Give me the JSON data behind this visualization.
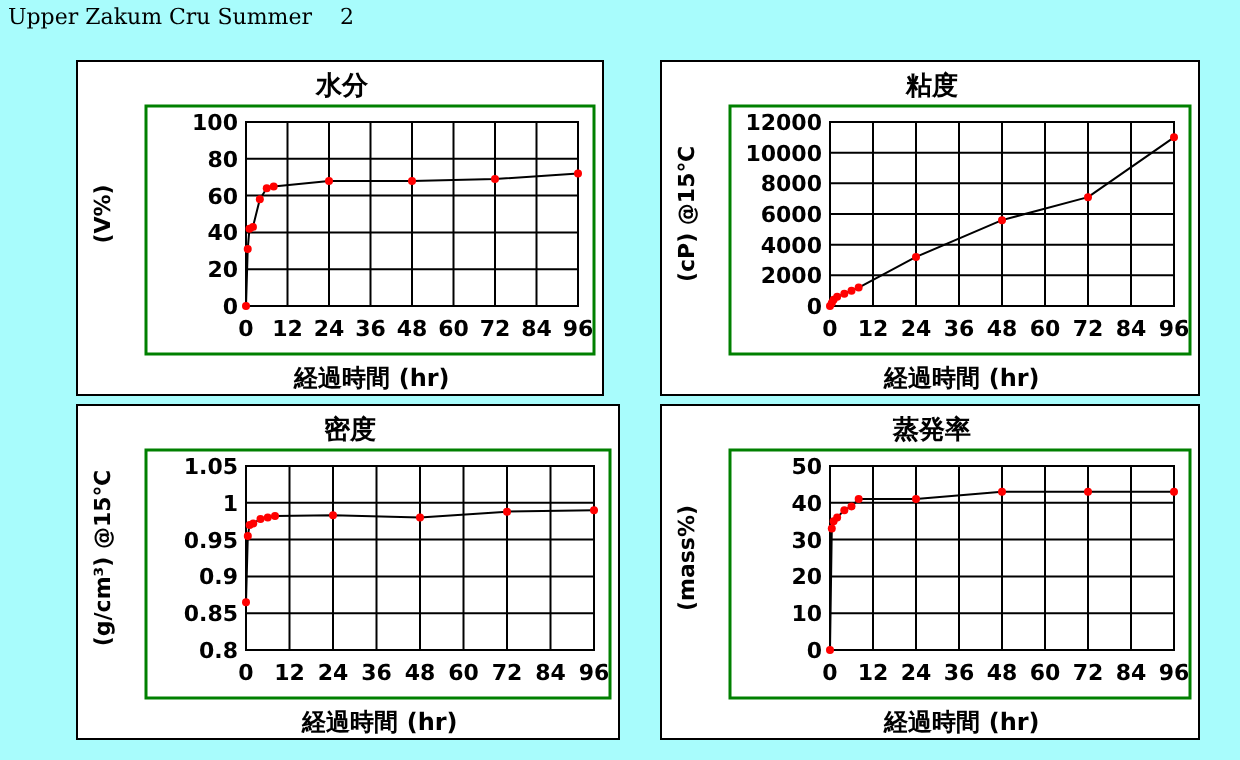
{
  "chart_data": [
    {
      "type": "line",
      "title": "水分",
      "ylabel": "(V%)",
      "xlabel": "経過時間 (hr)",
      "annotations": [
        "Upper Zakum Cru Summer    2"
      ],
      "x": [
        0,
        0.5,
        1,
        2,
        4,
        6,
        8,
        24,
        48,
        72,
        96
      ],
      "series": [
        {
          "color": "#ff0000",
          "values": [
            0,
            31,
            42,
            43,
            58,
            64,
            65,
            68,
            68,
            69,
            72
          ]
        }
      ],
      "xlim": [
        0,
        96
      ],
      "xticks": [
        0,
        12,
        24,
        36,
        48,
        60,
        72,
        84,
        96
      ],
      "ylim": [
        0,
        100
      ],
      "yticks": [
        0,
        20,
        40,
        60,
        80,
        100
      ],
      "grid": true,
      "marker": "circle",
      "line_style": "solid"
    },
    {
      "type": "line",
      "title": "粘度",
      "ylabel": "(cP) @15℃",
      "xlabel": "経過時間 (hr)",
      "x": [
        0,
        0.5,
        1,
        2,
        4,
        6,
        8,
        24,
        48,
        72,
        96
      ],
      "series": [
        {
          "color": "#ff0000",
          "values": [
            0,
            200,
            400,
            600,
            800,
            1000,
            1200,
            3200,
            5600,
            7100,
            11000
          ]
        }
      ],
      "xlim": [
        0,
        96
      ],
      "xticks": [
        0,
        12,
        24,
        36,
        48,
        60,
        72,
        84,
        96
      ],
      "ylim": [
        0,
        12000
      ],
      "yticks": [
        0,
        2000,
        4000,
        6000,
        8000,
        10000,
        12000
      ],
      "grid": true,
      "marker": "circle",
      "line_style": "solid"
    },
    {
      "type": "line",
      "title": "密度",
      "ylabel": "(g/cm³) @15℃",
      "xlabel": "経過時間 (hr)",
      "x": [
        0,
        0.5,
        1,
        2,
        4,
        6,
        8,
        24,
        48,
        72,
        96
      ],
      "series": [
        {
          "color": "#ff0000",
          "values": [
            0.865,
            0.955,
            0.97,
            0.972,
            0.978,
            0.98,
            0.982,
            0.983,
            0.98,
            0.988,
            0.99
          ]
        }
      ],
      "xlim": [
        0,
        96
      ],
      "xticks": [
        0,
        12,
        24,
        36,
        48,
        60,
        72,
        84,
        96
      ],
      "ylim": [
        0.8,
        1.05
      ],
      "yticks": [
        0.8,
        0.85,
        0.9,
        0.95,
        1,
        1.05
      ],
      "grid": true,
      "marker": "circle",
      "line_style": "solid"
    },
    {
      "type": "line",
      "title": "蒸発率",
      "ylabel": "(mass%)",
      "xlabel": "経過時間 (hr)",
      "x": [
        0,
        0.5,
        1,
        2,
        4,
        6,
        8,
        24,
        48,
        72,
        96
      ],
      "series": [
        {
          "color": "#ff0000",
          "values": [
            0,
            33,
            35,
            36,
            38,
            39,
            41,
            41,
            43,
            43,
            43
          ]
        }
      ],
      "xlim": [
        0,
        96
      ],
      "xticks": [
        0,
        12,
        24,
        36,
        48,
        60,
        72,
        84,
        96
      ],
      "ylim": [
        0,
        50
      ],
      "yticks": [
        0,
        10,
        20,
        30,
        40,
        50
      ],
      "grid": true,
      "marker": "circle",
      "line_style": "solid"
    }
  ]
}
